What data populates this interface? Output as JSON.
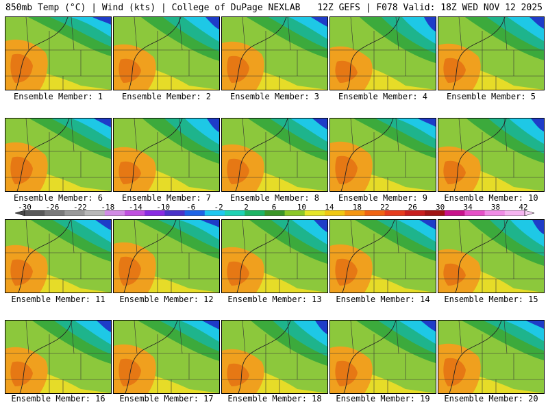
{
  "header": {
    "left_title": "850mb Temp (°C) | Wind (kts) | College of DuPage NEXLAB",
    "right_title": "12Z GEFS | F078 Valid: 18Z WED NOV 12 2025"
  },
  "panels": [
    {
      "caption": "Ensemble Member: 1"
    },
    {
      "caption": "Ensemble Member: 2"
    },
    {
      "caption": "Ensemble Member: 3"
    },
    {
      "caption": "Ensemble Member: 4"
    },
    {
      "caption": "Ensemble Member: 5"
    },
    {
      "caption": "Ensemble Member: 6"
    },
    {
      "caption": "Ensemble Member: 7"
    },
    {
      "caption": "Ensemble Member: 8"
    },
    {
      "caption": "Ensemble Member: 9"
    },
    {
      "caption": "Ensemble Member: 10"
    },
    {
      "caption": "Ensemble Member: 11"
    },
    {
      "caption": "Ensemble Member: 12"
    },
    {
      "caption": "Ensemble Member: 13"
    },
    {
      "caption": "Ensemble Member: 14"
    },
    {
      "caption": "Ensemble Member: 15"
    },
    {
      "caption": "Ensemble Member: 16"
    },
    {
      "caption": "Ensemble Member: 17"
    },
    {
      "caption": "Ensemble Member: 18"
    },
    {
      "caption": "Ensemble Member: 19"
    },
    {
      "caption": "Ensemble Member: 20"
    }
  ],
  "colorbar": {
    "labels": [
      "-30",
      "-26",
      "-22",
      "-18",
      "-14",
      "-10",
      "-6",
      "-2",
      "2",
      "6",
      "10",
      "14",
      "18",
      "22",
      "26",
      "30",
      "34",
      "38",
      "42"
    ],
    "colors": [
      "#5a5a5a",
      "#7a7a7a",
      "#9a9a9a",
      "#b8b8b8",
      "#d28ce6",
      "#c050e0",
      "#8a2be2",
      "#4b32c8",
      "#1e64e6",
      "#1ec8f0",
      "#1ed2b4",
      "#1eb464",
      "#3c9628",
      "#8cc828",
      "#e6e628",
      "#f0c814",
      "#f59614",
      "#f06414",
      "#e63c1e",
      "#c81e1e",
      "#a01414",
      "#c8148c",
      "#e650c8",
      "#f08ce6",
      "#f5b4f0"
    ]
  },
  "map_colors": {
    "cold": "#1e3cc8",
    "cyan": "#1ec8e6",
    "teal": "#1eb48c",
    "green": "#3caa3c",
    "lime": "#8cc83c",
    "yellow": "#e6dc28",
    "orange": "#f0a01e",
    "darkorange": "#e67814"
  }
}
